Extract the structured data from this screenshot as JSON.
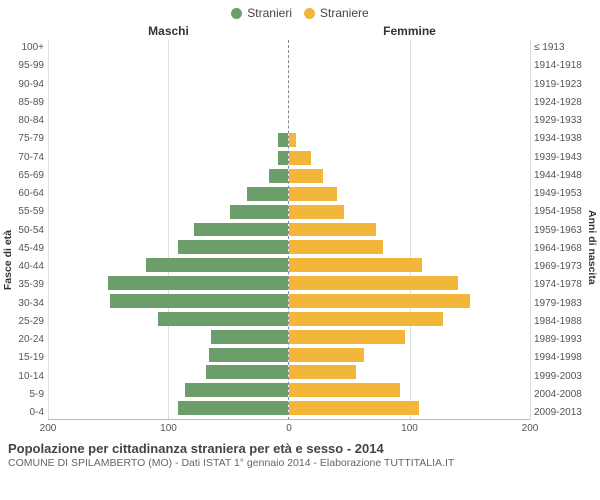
{
  "legend": [
    {
      "label": "Stranieri",
      "color": "#6b9e6b"
    },
    {
      "label": "Straniere",
      "color": "#f2b63a"
    }
  ],
  "header_left": "Maschi",
  "header_right": "Femmine",
  "y_left_title": "Fasce di età",
  "y_right_title": "Anni di nascita",
  "axis_max": 200,
  "xticks_left": [
    200,
    100,
    0
  ],
  "xticks_right": [
    0,
    100,
    200
  ],
  "grid_step": 100,
  "title": "Popolazione per cittadinanza straniera per età e sesso - 2014",
  "caption": "COMUNE DI SPILAMBERTO (MO) - Dati ISTAT 1° gennaio 2014 - Elaborazione TUTTITALIA.IT",
  "male_color": "#6b9e6b",
  "female_color": "#f2b63a",
  "background": "#ffffff",
  "grid_color": "#dddddd",
  "rows": [
    {
      "age": "100+",
      "birth": "≤ 1913",
      "m": 0,
      "f": 0
    },
    {
      "age": "95-99",
      "birth": "1914-1918",
      "m": 0,
      "f": 0
    },
    {
      "age": "90-94",
      "birth": "1919-1923",
      "m": 0,
      "f": 0
    },
    {
      "age": "85-89",
      "birth": "1924-1928",
      "m": 0,
      "f": 0
    },
    {
      "age": "80-84",
      "birth": "1929-1933",
      "m": 0,
      "f": 0
    },
    {
      "age": "75-79",
      "birth": "1934-1938",
      "m": 8,
      "f": 6
    },
    {
      "age": "70-74",
      "birth": "1939-1943",
      "m": 8,
      "f": 18
    },
    {
      "age": "65-69",
      "birth": "1944-1948",
      "m": 16,
      "f": 28
    },
    {
      "age": "60-64",
      "birth": "1949-1953",
      "m": 34,
      "f": 40
    },
    {
      "age": "55-59",
      "birth": "1954-1958",
      "m": 48,
      "f": 46
    },
    {
      "age": "50-54",
      "birth": "1959-1963",
      "m": 78,
      "f": 72
    },
    {
      "age": "45-49",
      "birth": "1964-1968",
      "m": 92,
      "f": 78
    },
    {
      "age": "40-44",
      "birth": "1969-1973",
      "m": 118,
      "f": 110
    },
    {
      "age": "35-39",
      "birth": "1974-1978",
      "m": 150,
      "f": 140
    },
    {
      "age": "30-34",
      "birth": "1979-1983",
      "m": 148,
      "f": 150
    },
    {
      "age": "25-29",
      "birth": "1984-1988",
      "m": 108,
      "f": 128
    },
    {
      "age": "20-24",
      "birth": "1989-1993",
      "m": 64,
      "f": 96
    },
    {
      "age": "15-19",
      "birth": "1994-1998",
      "m": 66,
      "f": 62
    },
    {
      "age": "10-14",
      "birth": "1999-2003",
      "m": 68,
      "f": 56
    },
    {
      "age": "5-9",
      "birth": "2004-2008",
      "m": 86,
      "f": 92
    },
    {
      "age": "0-4",
      "birth": "2009-2013",
      "m": 92,
      "f": 108
    }
  ]
}
